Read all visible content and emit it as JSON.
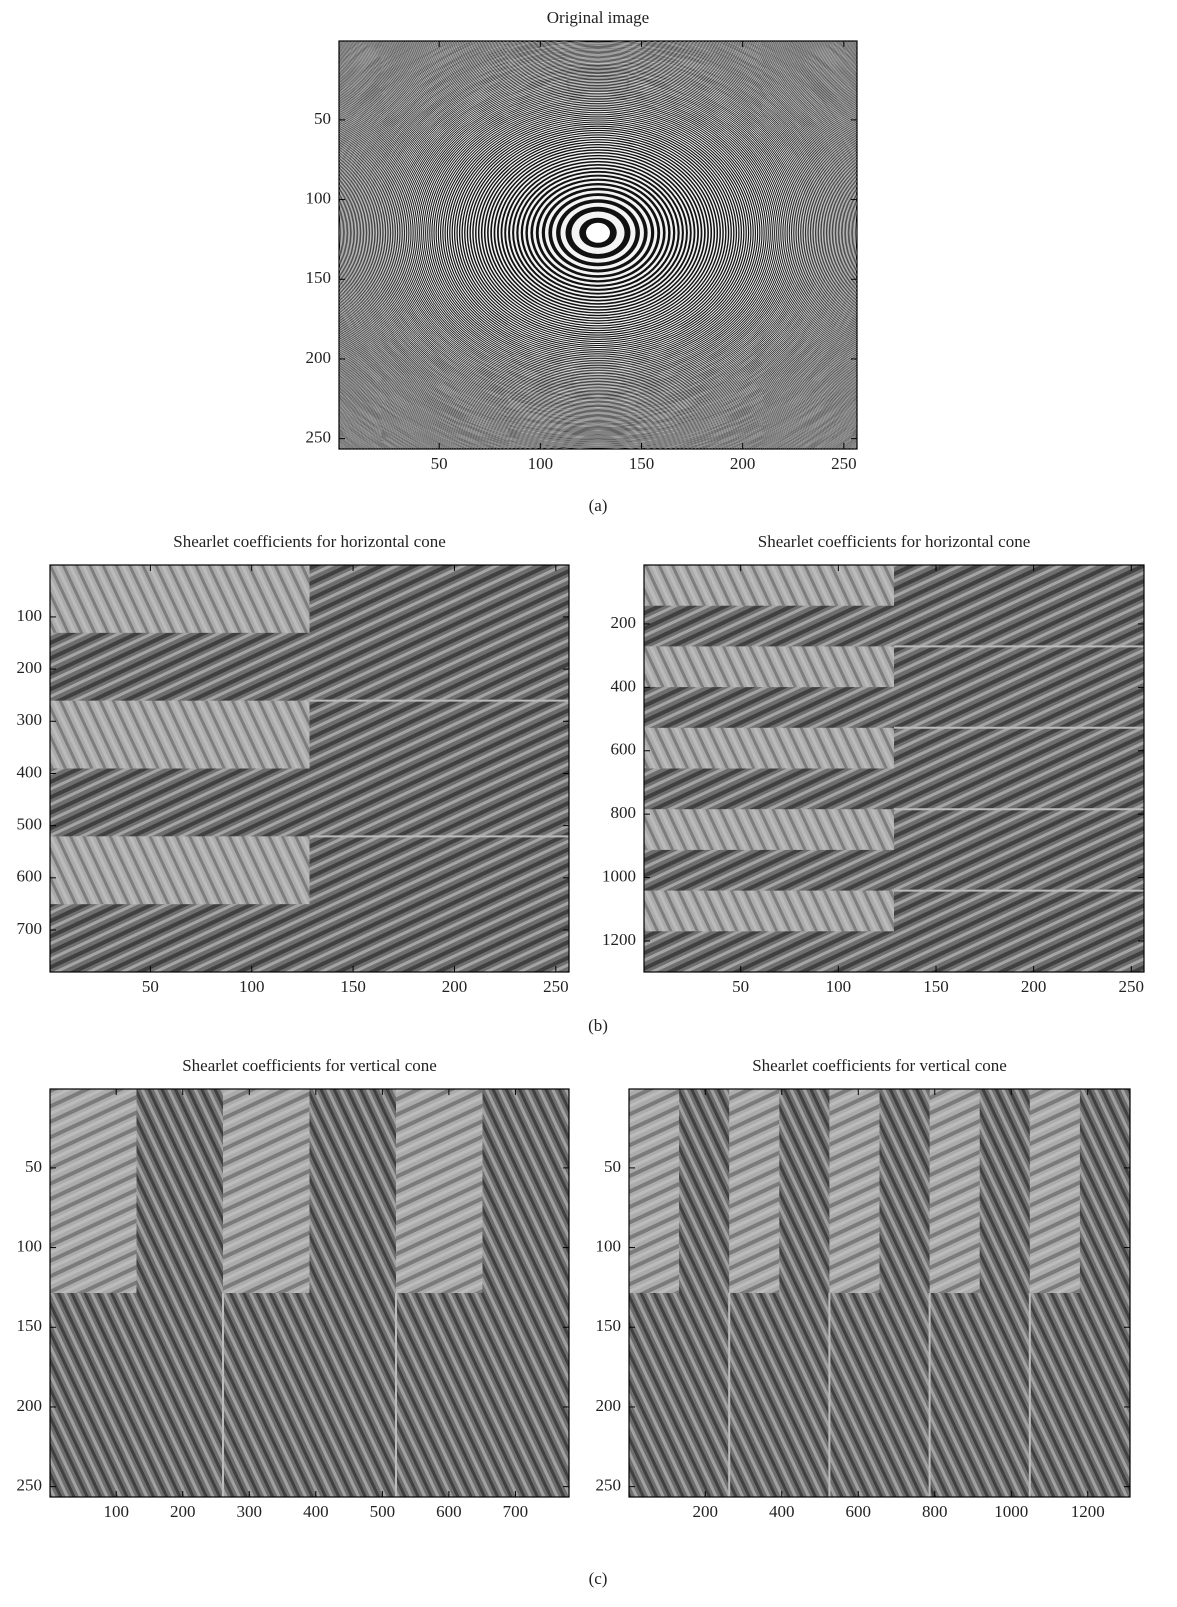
{
  "chart_data": [
    {
      "type": "image",
      "title": "Original image",
      "xlim": [
        0.5,
        256.5
      ],
      "ylim": [
        0.5,
        256.5
      ],
      "xticks": [
        50,
        100,
        150,
        200,
        250
      ],
      "yticks": [
        50,
        100,
        150,
        200,
        250
      ]
    },
    {
      "type": "image",
      "title": "Shearlet coefficients for horizontal cone",
      "xlim": [
        0.5,
        256.5
      ],
      "ylim": [
        0.5,
        780.5
      ],
      "xticks": [
        50,
        100,
        150,
        200,
        250
      ],
      "yticks": [
        100,
        200,
        300,
        400,
        500,
        600,
        700
      ]
    },
    {
      "type": "image",
      "title": "Shearlet coefficients for horizontal cone",
      "xlim": [
        0.5,
        256.5
      ],
      "ylim": [
        14,
        1298
      ],
      "xticks": [
        50,
        100,
        150,
        200,
        250
      ],
      "yticks": [
        200,
        400,
        600,
        800,
        1000,
        1200
      ]
    },
    {
      "type": "image",
      "title": "Shearlet coefficients for vertical cone",
      "xlim": [
        0.5,
        780.5
      ],
      "ylim": [
        0.5,
        256.5
      ],
      "xticks": [
        100,
        200,
        300,
        400,
        500,
        600,
        700
      ],
      "yticks": [
        50,
        100,
        150,
        200,
        250
      ]
    },
    {
      "type": "image",
      "title": "Shearlet coefficients for vertical cone",
      "xlim": [
        0.5,
        1310.5
      ],
      "ylim": [
        0.5,
        256.5
      ],
      "xticks": [
        200,
        400,
        600,
        800,
        1000,
        1200
      ],
      "yticks": [
        50,
        100,
        150,
        200,
        250
      ]
    }
  ],
  "captions": [
    "(a)",
    "(b)",
    "(c)"
  ]
}
